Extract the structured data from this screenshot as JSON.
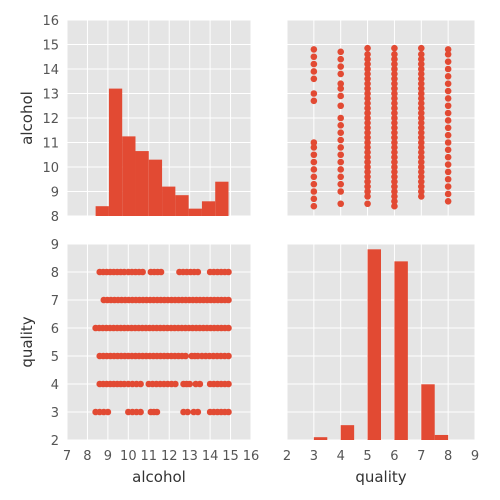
{
  "chart_data": {
    "type": "pairplot",
    "variables": [
      "alcohol",
      "quality"
    ],
    "color": "#e24a33",
    "background": "#e5e5e5",
    "grid": true,
    "panels": [
      {
        "id": "alcohol-hist",
        "type": "bar",
        "xlim": [
          8,
          15.2
        ],
        "ylim": [
          8,
          16
        ],
        "yticks": [
          8,
          9,
          10,
          11,
          12,
          13,
          14,
          15,
          16
        ],
        "ylabel": "alcohol",
        "bins": [
          {
            "x0": 8.4,
            "x1": 9.05,
            "value": 8.4
          },
          {
            "x0": 9.05,
            "x1": 9.7,
            "value": 13.2
          },
          {
            "x0": 9.7,
            "x1": 10.35,
            "value": 11.25
          },
          {
            "x0": 10.35,
            "x1": 11.0,
            "value": 10.65
          },
          {
            "x0": 11.0,
            "x1": 11.65,
            "value": 10.3
          },
          {
            "x0": 11.65,
            "x1": 12.3,
            "value": 9.2
          },
          {
            "x0": 12.3,
            "x1": 12.95,
            "value": 8.85
          },
          {
            "x0": 12.95,
            "x1": 13.6,
            "value": 8.3
          },
          {
            "x0": 13.6,
            "x1": 14.25,
            "value": 8.6
          },
          {
            "x0": 14.25,
            "x1": 14.9,
            "value": 9.4
          }
        ]
      },
      {
        "id": "quality-vs-alcohol",
        "type": "scatter",
        "x_variable": "quality",
        "y_variable": "alcohol",
        "xlim": [
          2,
          9
        ],
        "ylim": [
          8,
          16
        ],
        "columns": [
          {
            "x": 3,
            "y": [
              8.4,
              8.7,
              9.0,
              9.3,
              9.6,
              9.9,
              10.2,
              10.5,
              10.8,
              11.0,
              12.7,
              13.0,
              13.6,
              13.9,
              14.2,
              14.5,
              14.8
            ]
          },
          {
            "x": 4,
            "y": [
              8.5,
              9.0,
              9.3,
              9.6,
              9.9,
              10.2,
              10.5,
              10.8,
              11.1,
              11.4,
              11.7,
              12.0,
              12.5,
              12.9,
              13.2,
              13.4,
              13.8,
              14.1,
              14.4,
              14.7
            ]
          },
          {
            "x": 5,
            "y": [
              8.5,
              8.8,
              9.0,
              9.2,
              9.4,
              9.6,
              9.8,
              10.0,
              10.2,
              10.4,
              10.6,
              10.8,
              11.0,
              11.2,
              11.4,
              11.6,
              11.8,
              12.0,
              12.2,
              12.4,
              12.6,
              12.8,
              13.0,
              13.2,
              13.4,
              13.6,
              13.8,
              14.0,
              14.2,
              14.4,
              14.6,
              14.85
            ]
          },
          {
            "x": 6,
            "y": [
              8.4,
              8.6,
              8.8,
              9.0,
              9.2,
              9.4,
              9.6,
              9.8,
              10.0,
              10.2,
              10.4,
              10.6,
              10.8,
              11.0,
              11.2,
              11.4,
              11.6,
              11.8,
              12.0,
              12.2,
              12.4,
              12.6,
              12.8,
              13.0,
              13.2,
              13.4,
              13.6,
              13.8,
              14.0,
              14.2,
              14.4,
              14.6,
              14.85
            ]
          },
          {
            "x": 7,
            "y": [
              8.8,
              9.0,
              9.2,
              9.4,
              9.6,
              9.8,
              10.0,
              10.2,
              10.4,
              10.6,
              10.8,
              11.0,
              11.2,
              11.4,
              11.6,
              11.8,
              12.0,
              12.2,
              12.4,
              12.6,
              12.8,
              13.0,
              13.2,
              13.4,
              13.6,
              13.8,
              14.0,
              14.2,
              14.4,
              14.6,
              14.85
            ]
          },
          {
            "x": 8,
            "y": [
              8.6,
              8.9,
              9.2,
              9.5,
              9.8,
              10.1,
              10.4,
              10.7,
              11.0,
              11.3,
              11.6,
              11.9,
              12.2,
              12.5,
              12.8,
              13.1,
              13.4,
              13.7,
              14.0,
              14.3,
              14.6,
              14.8
            ]
          }
        ]
      },
      {
        "id": "alcohol-vs-quality",
        "type": "scatter",
        "x_variable": "alcohol",
        "y_variable": "quality",
        "xlim": [
          7,
          16
        ],
        "ylim": [
          2,
          9
        ],
        "xticks": [
          7,
          8,
          9,
          10,
          11,
          12,
          13,
          14,
          15,
          16
        ],
        "yticks": [
          2,
          3,
          4,
          5,
          6,
          7,
          8,
          9
        ],
        "xlabel": "alcohol",
        "ylabel": "quality",
        "rows": [
          {
            "y": 3,
            "segments": [
              [
                8.4,
                9.0
              ],
              [
                10.0,
                10.6
              ],
              [
                11.1,
                11.4
              ],
              [
                12.7,
                12.9
              ],
              [
                13.2,
                13.4
              ],
              [
                14.0,
                14.9
              ]
            ]
          },
          {
            "y": 4,
            "segments": [
              [
                8.6,
                9.8
              ],
              [
                10.0,
                10.6
              ],
              [
                11.0,
                12.3
              ],
              [
                12.7,
                13.0
              ],
              [
                13.3,
                13.5
              ],
              [
                14.0,
                14.9
              ]
            ]
          },
          {
            "y": 5,
            "segments": [
              [
                8.6,
                12.8
              ],
              [
                13.1,
                13.4
              ],
              [
                13.6,
                14.9
              ]
            ]
          },
          {
            "y": 6,
            "segments": [
              [
                8.4,
                14.9
              ]
            ]
          },
          {
            "y": 7,
            "segments": [
              [
                8.8,
                14.9
              ]
            ]
          },
          {
            "y": 8,
            "segments": [
              [
                8.6,
                9.8
              ],
              [
                10.0,
                10.7
              ],
              [
                11.1,
                11.6
              ],
              [
                12.5,
                13.4
              ],
              [
                14.0,
                14.9
              ]
            ]
          }
        ]
      },
      {
        "id": "quality-hist",
        "type": "bar",
        "xlim": [
          2,
          9
        ],
        "ylim": [
          0,
          700
        ],
        "xticks": [
          2,
          3,
          4,
          5,
          6,
          7,
          8,
          9
        ],
        "xlabel": "quality",
        "bins": [
          {
            "x0": 3.0,
            "x1": 3.5,
            "value": 10
          },
          {
            "x0": 3.5,
            "x1": 4.0,
            "value": 0
          },
          {
            "x0": 4.0,
            "x1": 4.5,
            "value": 53
          },
          {
            "x0": 4.5,
            "x1": 5.0,
            "value": 0
          },
          {
            "x0": 5.0,
            "x1": 5.5,
            "value": 681
          },
          {
            "x0": 5.5,
            "x1": 6.0,
            "value": 0
          },
          {
            "x0": 6.0,
            "x1": 6.5,
            "value": 638
          },
          {
            "x0": 6.5,
            "x1": 7.0,
            "value": 0
          },
          {
            "x0": 7.0,
            "x1": 7.5,
            "value": 199
          },
          {
            "x0": 7.5,
            "x1": 8.0,
            "value": 18
          }
        ]
      }
    ]
  }
}
